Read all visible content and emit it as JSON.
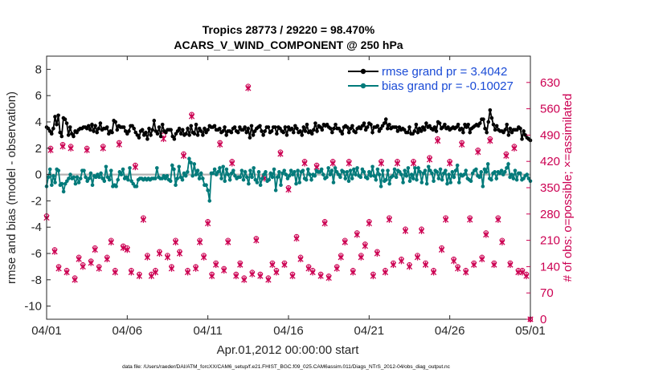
{
  "title_line1": "Tropics 28773 / 29220 = 98.470%",
  "title_line2": "ACARS_V_WIND_COMPONENT @ 250 hPa",
  "xlabel": "Apr.01,2012 00:00:00 start",
  "ylabel_left": "rmse and bias (model - observation)",
  "ylabel_right": "# of obs: o=possible; ×=assimilated",
  "footer": "data file: /Users/raeder/DAI/ATM_forcXX/CAM6_setup/f.e21.FHIST_BGC.f09_025.CAM6assim.011/Diags_NTrS_2012-04/obs_diag_output.nc",
  "colors": {
    "rmse": "#000000",
    "bias": "#007a7a",
    "obs": "#cc0052",
    "zero_line": "#b3b3b3",
    "legend_text": "#1a4bd6"
  },
  "chart_data": {
    "type": "line",
    "x_unit": "days since Apr.01,2012 00:00:00",
    "xlim": [
      0,
      30
    ],
    "ylim_left": [
      -11,
      9
    ],
    "ylim_right": [
      0,
      700
    ],
    "x_ticks": [
      0,
      5,
      10,
      15,
      20,
      25,
      30
    ],
    "x_tick_labels": [
      "04/01",
      "04/06",
      "04/11",
      "04/16",
      "04/21",
      "04/26",
      "05/01"
    ],
    "y_ticks_left": [
      -10,
      -8,
      -6,
      -4,
      -2,
      0,
      2,
      4,
      6,
      8
    ],
    "y_ticks_right": [
      0,
      70,
      140,
      210,
      280,
      350,
      420,
      490,
      560,
      630
    ],
    "legend": [
      {
        "name": "rmse",
        "label": "rmse grand pr = 3.4042"
      },
      {
        "name": "bias",
        "label": "bias grand pr = -0.10027"
      }
    ],
    "series": [
      {
        "name": "rmse",
        "axis": "left",
        "values": [
          3.6,
          3.5,
          3.3,
          3.1,
          3.5,
          4.4,
          3.8,
          4.5,
          3.2,
          2.9,
          4.3,
          4.2,
          3.9,
          3.0,
          3.6,
          3.1,
          2.9,
          3.3,
          3.2,
          3.4,
          3.5,
          3.5,
          3.6,
          3.6,
          3.5,
          3.7,
          3.4,
          3.8,
          3.3,
          3.7,
          3.2,
          3.5,
          3.9,
          3.4,
          3.5,
          3.5,
          3.6,
          3.1,
          3.3,
          3.2,
          4.1,
          4.0,
          3.4,
          3.7,
          3.6,
          3.6,
          3.6,
          3.3,
          3.1,
          3.3,
          3.7,
          3.7,
          3.5,
          3.2,
          3.0,
          2.8,
          3.3,
          3.4,
          3.0,
          3.2,
          2.7,
          3.5,
          3.0,
          3.4,
          4.1,
          3.3,
          3.1,
          3.6,
          2.9,
          3.8,
          3.3,
          3.2,
          3.4,
          3.4,
          3.4,
          2.9,
          2.7,
          3.1,
          3.3,
          3.5,
          3.1,
          3.4,
          3.0,
          3.1,
          3.5,
          3.0,
          3.7,
          3.2,
          3.1,
          3.8,
          3.0,
          3.5,
          3.3,
          3.0,
          3.5,
          3.2,
          3.4,
          3.7,
          3.6,
          3.6,
          3.7,
          3.4,
          3.4,
          3.5,
          3.2,
          3.3,
          3.6,
          3.0,
          3.3,
          3.3,
          3.2,
          3.5,
          3.6,
          3.3,
          3.2,
          3.6,
          3.4,
          3.4,
          3.6,
          3.2,
          3.5,
          2.8,
          3.7,
          3.0,
          3.3,
          3.5,
          3.6,
          3.7,
          3.3,
          3.0,
          3.3,
          3.6,
          3.6,
          3.2,
          3.3,
          3.6,
          3.6,
          3.1,
          3.6,
          3.5,
          3.3,
          3.2,
          3.6,
          3.0,
          3.6,
          3.4,
          3.5,
          3.2,
          3.7,
          3.5,
          3.2,
          3.3,
          3.0,
          3.6,
          3.3,
          3.8,
          3.2,
          3.3,
          3.1,
          3.4,
          3.9,
          3.3,
          3.7,
          3.6,
          3.4,
          3.8,
          3.7,
          3.8,
          3.6,
          3.5,
          3.2,
          3.5,
          3.8,
          3.5,
          3.5,
          3.3,
          3.1,
          3.6,
          3.7,
          3.6,
          3.2,
          3.5,
          3.7,
          3.3,
          3.2,
          3.5,
          3.6,
          3.5,
          3.7,
          3.9,
          3.4,
          3.6,
          3.9,
          3.8,
          3.2,
          3.6,
          3.6,
          3.7,
          3.3,
          3.5,
          3.7,
          3.9,
          4.2,
          3.5,
          3.8,
          3.5,
          3.6,
          3.6,
          3.6,
          3.3,
          3.6,
          3.4,
          3.5,
          3.4,
          3.2,
          3.2,
          3.6,
          3.1,
          3.1,
          3.3,
          3.8,
          3.2,
          3.5,
          3.3,
          3.6,
          3.4,
          3.9,
          3.6,
          3.7,
          3.5,
          3.4,
          3.6,
          3.3,
          4.0,
          3.9,
          3.5,
          3.6,
          3.8,
          3.5,
          3.6,
          3.4,
          3.5,
          3.6,
          3.5,
          3.6,
          3.8,
          3.4,
          3.5,
          3.2,
          3.8,
          3.6,
          3.8,
          3.2,
          3.5,
          3.6,
          3.7,
          3.8,
          3.7,
          3.9,
          4.2,
          4.2,
          3.5,
          3.2,
          4.0,
          4.9,
          4.3,
          3.8,
          3.4,
          3.7,
          3.4,
          3.3,
          3.3,
          3.2,
          3.4,
          3.8,
          3.0,
          3.5,
          3.2,
          3.4,
          3.4,
          3.4,
          3.6,
          3.5,
          2.7,
          3.3,
          3.0,
          2.8,
          2.7,
          2.6
        ]
      },
      {
        "name": "bias",
        "axis": "left",
        "values": [
          -0.9,
          -0.2,
          0.4,
          -0.8,
          -0.1,
          -0.6,
          0.4,
          0.3,
          -0.8,
          -0.7,
          -1.3,
          -0.7,
          -0.5,
          -0.3,
          0.0,
          -0.3,
          -0.2,
          -0.7,
          -0.2,
          -0.6,
          -0.3,
          0.3,
          0.3,
          -0.2,
          -0.5,
          -0.3,
          0.1,
          -0.8,
          -0.1,
          -0.2,
          0.0,
          -0.2,
          0.1,
          -0.3,
          -0.5,
          0.6,
          -0.2,
          -0.4,
          0.3,
          -0.9,
          -0.8,
          -0.9,
          -0.4,
          0.2,
          0.0,
          0.4,
          -0.3,
          -0.2,
          -0.4,
          0.5,
          -0.5,
          -0.7,
          -0.9,
          -0.9,
          -0.4,
          -0.3,
          -0.3,
          -0.4,
          -0.3,
          -0.4,
          -0.3,
          -0.4,
          -0.3,
          -0.3,
          -0.3,
          0.5,
          -0.2,
          -0.3,
          -0.3,
          -0.1,
          -0.3,
          -0.1,
          -0.4,
          -0.5,
          0.7,
          0.4,
          -0.8,
          -0.3,
          0.6,
          -0.2,
          -0.4,
          0.1,
          -0.1,
          0.2,
          1.2,
          0.9,
          -0.1,
          0.8,
          0.0,
          0.3,
          -0.3,
          0.1,
          -0.3,
          -0.8,
          -0.8,
          -1.2,
          -2.0,
          0.1,
          0.1,
          0.4,
          0.0,
          0.2,
          0.5,
          -0.3,
          0.6,
          -0.5,
          0.4,
          0.0,
          -0.4,
          0.1,
          0.3,
          -0.1,
          -0.3,
          -0.2,
          -0.2,
          0.3,
          -0.4,
          0.2,
          -0.2,
          -0.7,
          0.3,
          -0.2,
          0.5,
          -0.4,
          -0.6,
          0.2,
          -0.8,
          -0.3,
          0.0,
          0.2,
          -0.5,
          -0.4,
          0.1,
          -0.2,
          0.4,
          -1.2,
          -0.2,
          0.2,
          -0.8,
          0.1,
          0.3,
          0.0,
          -0.3,
          -0.1,
          0.3,
          0.0,
          0.2,
          -0.7,
          0.3,
          -0.6,
          0.2,
          0.3,
          -0.3,
          -0.4,
          0.4,
          0.0,
          -0.4,
          0.0,
          -0.1,
          0.3,
          0.2,
          0.2,
          0.4,
          0.0,
          -0.3,
          -0.2,
          0.5,
          0.0,
          0.3,
          -0.6,
          0.5,
          0.2,
          0.0,
          -0.2,
          0.3,
          0.2,
          -0.3,
          0.2,
          -0.5,
          0.3,
          -0.3,
          0.4,
          0.0,
          0.5,
          -0.1,
          -0.2,
          0.4,
          0.2,
          -0.2,
          -0.3,
          0.2,
          -0.1,
          0.6,
          -0.1,
          -0.4,
          0.4,
          0.0,
          -0.9,
          0.3,
          -0.5,
          -0.4,
          0.3,
          -0.7,
          -0.2,
          -0.1,
          0.4,
          -0.2,
          0.3,
          0.2,
          0.0,
          -0.6,
          0.3,
          -0.1,
          0.5,
          -0.5,
          0.0,
          -0.3,
          0.5,
          -0.4,
          0.5,
          0.2,
          -0.6,
          0.1,
          0.3,
          -0.7,
          0.6,
          0.3,
          0.1,
          -0.5,
          0.3,
          0.2,
          -0.3,
          0.4,
          -0.4,
          0.1,
          0.3,
          -0.7,
          0.0,
          -0.6,
          0.2,
          -0.2,
          0.3,
          0.7,
          -0.6,
          0.0,
          -0.1,
          0.0,
          0.3,
          -0.3,
          -0.4,
          -0.5,
          0.1,
          0.3,
          0.4,
          -0.1,
          -0.2,
          0.2,
          -0.9,
          0.4,
          0.2,
          0.8,
          -0.3,
          -0.4,
          0.1,
          0.2,
          -0.3,
          0.2,
          0.1,
          0.3,
          0.0,
          0.2,
          0.5,
          0.8,
          -0.2,
          0.0,
          -0.3,
          0.3,
          -0.4,
          0.1,
          0.1,
          -0.4,
          -0.3,
          -0.1,
          0.0,
          -0.3,
          -0.5
        ]
      },
      {
        "name": "obs_possible",
        "axis": "right",
        "marker": "o",
        "x": [
          0.0,
          0.25,
          0.5,
          0.75,
          1.0,
          1.25,
          1.5,
          1.75,
          2.0,
          2.25,
          2.5,
          2.75,
          3.0,
          3.25,
          3.5,
          3.75,
          4.0,
          4.25,
          4.5,
          4.75,
          5.0,
          5.25,
          5.5,
          5.75,
          6.0,
          6.25,
          6.5,
          6.75,
          7.0,
          7.25,
          7.5,
          7.75,
          8.0,
          8.25,
          8.5,
          8.75,
          9.0,
          9.25,
          9.5,
          9.75,
          10.0,
          10.25,
          10.5,
          10.75,
          11.0,
          11.25,
          11.5,
          11.75,
          12.0,
          12.25,
          12.5,
          12.75,
          13.0,
          13.25,
          13.5,
          13.75,
          14.0,
          14.25,
          14.5,
          14.75,
          15.0,
          15.25,
          15.5,
          15.75,
          16.0,
          16.25,
          16.5,
          16.75,
          17.0,
          17.25,
          17.5,
          17.75,
          18.0,
          18.25,
          18.5,
          18.75,
          19.0,
          19.25,
          19.5,
          19.75,
          20.0,
          20.25,
          20.5,
          20.75,
          21.0,
          21.25,
          21.5,
          21.75,
          22.0,
          22.25,
          22.5,
          22.75,
          23.0,
          23.25,
          23.5,
          23.75,
          24.0,
          24.25,
          24.5,
          24.75,
          25.0,
          25.25,
          25.5,
          25.75,
          26.0,
          26.25,
          26.5,
          26.75,
          27.0,
          27.25,
          27.5,
          27.75,
          28.0,
          28.25,
          28.5,
          28.75,
          29.0,
          29.25,
          29.5,
          29.75,
          30.0
        ],
        "values": [
          275,
          455,
          185,
          140,
          465,
          130,
          460,
          110,
          165,
          145,
          455,
          155,
          190,
          140,
          460,
          165,
          210,
          130,
          470,
          195,
          190,
          130,
          410,
          120,
          270,
          170,
          120,
          130,
          180,
          490,
          170,
          140,
          210,
          180,
          440,
          130,
          545,
          140,
          210,
          170,
          260,
          120,
          150,
          470,
          135,
          210,
          420,
          120,
          150,
          110,
          620,
          125,
          215,
          120,
          380,
          110,
          150,
          130,
          445,
          150,
          350,
          120,
          220,
          165,
          420,
          140,
          130,
          410,
          120,
          260,
          115,
          420,
          140,
          170,
          210,
          420,
          130,
          230,
          170,
          200,
          260,
          120,
          180,
          420,
          130,
          270,
          150,
          420,
          160,
          240,
          145,
          420,
          170,
          240,
          150,
          430,
          130,
          480,
          190,
          270,
          420,
          160,
          140,
          470,
          130,
          270,
          150,
          450,
          165,
          230,
          480,
          150,
          270,
          210,
          440,
          150,
          460,
          130,
          130,
          120,
          0
        ]
      },
      {
        "name": "obs_assimilated",
        "axis": "right",
        "marker": "x",
        "x": [
          0.0,
          0.25,
          0.5,
          0.75,
          1.0,
          1.25,
          1.5,
          1.75,
          2.0,
          2.25,
          2.5,
          2.75,
          3.0,
          3.25,
          3.5,
          3.75,
          4.0,
          4.25,
          4.5,
          4.75,
          5.0,
          5.25,
          5.5,
          5.75,
          6.0,
          6.25,
          6.5,
          6.75,
          7.0,
          7.25,
          7.5,
          7.75,
          8.0,
          8.25,
          8.5,
          8.75,
          9.0,
          9.25,
          9.5,
          9.75,
          10.0,
          10.25,
          10.5,
          10.75,
          11.0,
          11.25,
          11.5,
          11.75,
          12.0,
          12.25,
          12.5,
          12.75,
          13.0,
          13.25,
          13.5,
          13.75,
          14.0,
          14.25,
          14.5,
          14.75,
          15.0,
          15.25,
          15.5,
          15.75,
          16.0,
          16.25,
          16.5,
          16.75,
          17.0,
          17.25,
          17.5,
          17.75,
          18.0,
          18.25,
          18.5,
          18.75,
          19.0,
          19.25,
          19.5,
          19.75,
          20.0,
          20.25,
          20.5,
          20.75,
          21.0,
          21.25,
          21.5,
          21.75,
          22.0,
          22.25,
          22.5,
          22.75,
          23.0,
          23.25,
          23.5,
          23.75,
          24.0,
          24.25,
          24.5,
          24.75,
          25.0,
          25.25,
          25.5,
          25.75,
          26.0,
          26.25,
          26.5,
          26.75,
          27.0,
          27.25,
          27.5,
          27.75,
          28.0,
          28.25,
          28.5,
          28.75,
          29.0,
          29.25,
          29.5,
          29.75,
          30.0
        ],
        "values": [
          270,
          450,
          180,
          135,
          460,
          125,
          455,
          105,
          160,
          140,
          450,
          150,
          185,
          135,
          455,
          160,
          205,
          125,
          465,
          190,
          185,
          125,
          405,
          115,
          265,
          165,
          115,
          125,
          175,
          480,
          165,
          135,
          205,
          175,
          435,
          125,
          540,
          135,
          205,
          165,
          255,
          115,
          145,
          465,
          130,
          205,
          415,
          115,
          145,
          105,
          615,
          120,
          210,
          115,
          375,
          105,
          145,
          125,
          440,
          145,
          345,
          115,
          215,
          160,
          415,
          135,
          125,
          405,
          115,
          255,
          110,
          415,
          135,
          165,
          205,
          415,
          125,
          225,
          165,
          195,
          255,
          115,
          175,
          415,
          125,
          265,
          145,
          415,
          155,
          235,
          140,
          415,
          165,
          235,
          145,
          425,
          125,
          475,
          185,
          265,
          415,
          155,
          135,
          465,
          125,
          265,
          145,
          445,
          160,
          225,
          475,
          145,
          265,
          205,
          435,
          145,
          455,
          125,
          125,
          115,
          0
        ]
      }
    ]
  }
}
